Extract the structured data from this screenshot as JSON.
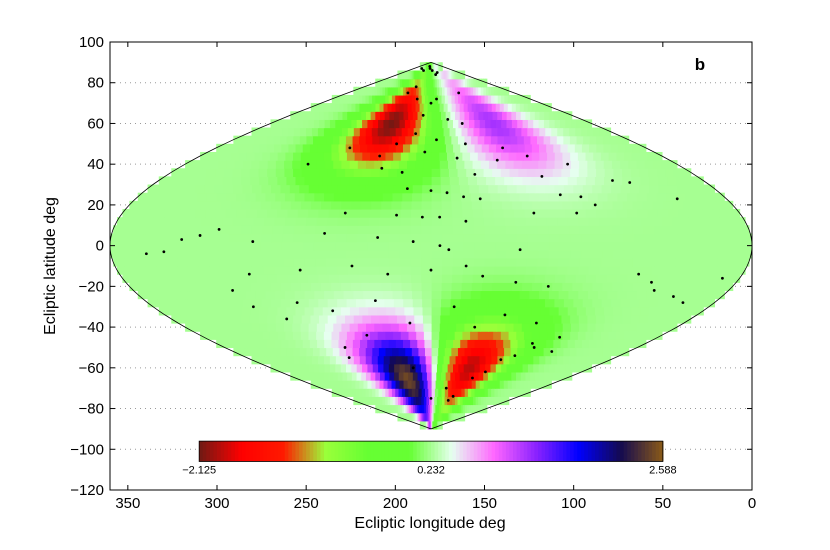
{
  "chart_data": {
    "type": "heatmap",
    "projection": "sinusoidal",
    "panel_label": "b",
    "xlabel": "Ecliptic longitude  deg",
    "ylabel": "Ecliptic latitude  deg",
    "xlim": [
      360,
      0
    ],
    "ylim": [
      -120,
      100
    ],
    "x_reversed": true,
    "x_ticks": [
      350,
      300,
      250,
      200,
      150,
      100,
      50,
      0
    ],
    "y_ticks": [
      100,
      80,
      60,
      40,
      20,
      0,
      -20,
      -40,
      -60,
      -80,
      -100,
      -120
    ],
    "grid": "horizontal dotted",
    "colorbar": {
      "min": -2.125,
      "mid": 0.232,
      "max": 2.588,
      "tick_labels": [
        "−2.125",
        "0.232",
        "2.588"
      ],
      "x_range": [
        310,
        50
      ],
      "y_range": [
        -96,
        -106
      ],
      "colors": [
        "#6e1a14",
        "#ff0000",
        "#ff1a00",
        "#9aff3a",
        "#66ff33",
        "#66ff33",
        "#e6fff0",
        "#ff66ff",
        "#8a22ff",
        "#0000ff",
        "#140a50",
        "#8a5a18"
      ]
    },
    "field_peaks": [
      {
        "lon": 225,
        "lat": 60,
        "value": -2.1
      },
      {
        "lon": 140,
        "lat": -60,
        "value": -2.0
      },
      {
        "lon": 210,
        "lat": -65,
        "value": 2.58
      },
      {
        "lon": 110,
        "lat": 60,
        "value": 1.2
      }
    ],
    "sources": [
      [
        279,
        87
      ],
      [
        240,
        86
      ],
      [
        200,
        88
      ],
      [
        190,
        87
      ],
      [
        170,
        86
      ],
      [
        155,
        84
      ],
      [
        140,
        85
      ],
      [
        220,
        78
      ],
      [
        230,
        75
      ],
      [
        205,
        72
      ],
      [
        180,
        70
      ],
      [
        170,
        72
      ],
      [
        120,
        75
      ],
      [
        190,
        64
      ],
      [
        160,
        62
      ],
      [
        145,
        60
      ],
      [
        195,
        55
      ],
      [
        210,
        50
      ],
      [
        175,
        52
      ],
      [
        150,
        50
      ],
      [
        120,
        48
      ],
      [
        248,
        48
      ],
      [
        220,
        44
      ],
      [
        185,
        46
      ],
      [
        160,
        43
      ],
      [
        130,
        42
      ],
      [
        105,
        44
      ],
      [
        80,
        40
      ],
      [
        270,
        40
      ],
      [
        215,
        38
      ],
      [
        200,
        36
      ],
      [
        150,
        35
      ],
      [
        105,
        34
      ],
      [
        60,
        32
      ],
      [
        50,
        31
      ],
      [
        195,
        28
      ],
      [
        180,
        27
      ],
      [
        170,
        26
      ],
      [
        160,
        24
      ],
      [
        150,
        23
      ],
      [
        100,
        25
      ],
      [
        88,
        24
      ],
      [
        82,
        20
      ],
      [
        30,
        23
      ],
      [
        230,
        16
      ],
      [
        200,
        15
      ],
      [
        185,
        14
      ],
      [
        175,
        14
      ],
      [
        160,
        12
      ],
      [
        120,
        16
      ],
      [
        95,
        16
      ],
      [
        240,
        6
      ],
      [
        210,
        4
      ],
      [
        190,
        2
      ],
      [
        175,
        0
      ],
      [
        170,
        -2
      ],
      [
        130,
        -2
      ],
      [
        340,
        -4
      ],
      [
        330,
        -3
      ],
      [
        320,
        3
      ],
      [
        310,
        5
      ],
      [
        300,
        8
      ],
      [
        280,
        2
      ],
      [
        285,
        -14
      ],
      [
        255,
        -12
      ],
      [
        225,
        -10
      ],
      [
        205,
        -14
      ],
      [
        180,
        -12
      ],
      [
        160,
        -10
      ],
      [
        150,
        -15
      ],
      [
        130,
        -18
      ],
      [
        110,
        -20
      ],
      [
        60,
        -14
      ],
      [
        50,
        -18
      ],
      [
        45,
        -22
      ],
      [
        30,
        -25
      ],
      [
        20,
        -28
      ],
      [
        10,
        -16
      ],
      [
        300,
        -22
      ],
      [
        295,
        -30
      ],
      [
        280,
        -36
      ],
      [
        265,
        -28
      ],
      [
        245,
        -32
      ],
      [
        215,
        -27
      ],
      [
        195,
        -38
      ],
      [
        165,
        -30
      ],
      [
        148,
        -40
      ],
      [
        130,
        -34
      ],
      [
        105,
        -38
      ],
      [
        90,
        -50
      ],
      [
        78,
        -45
      ],
      [
        70,
        -52
      ],
      [
        255,
        -50
      ],
      [
        260,
        -55
      ],
      [
        230,
        -44
      ],
      [
        200,
        -60
      ],
      [
        180,
        -75
      ],
      [
        155,
        -70
      ],
      [
        140,
        -76
      ],
      [
        135,
        -74
      ],
      [
        125,
        -65
      ],
      [
        115,
        -62
      ],
      [
        110,
        -56
      ],
      [
        100,
        -54
      ],
      [
        95,
        -48
      ]
    ]
  }
}
